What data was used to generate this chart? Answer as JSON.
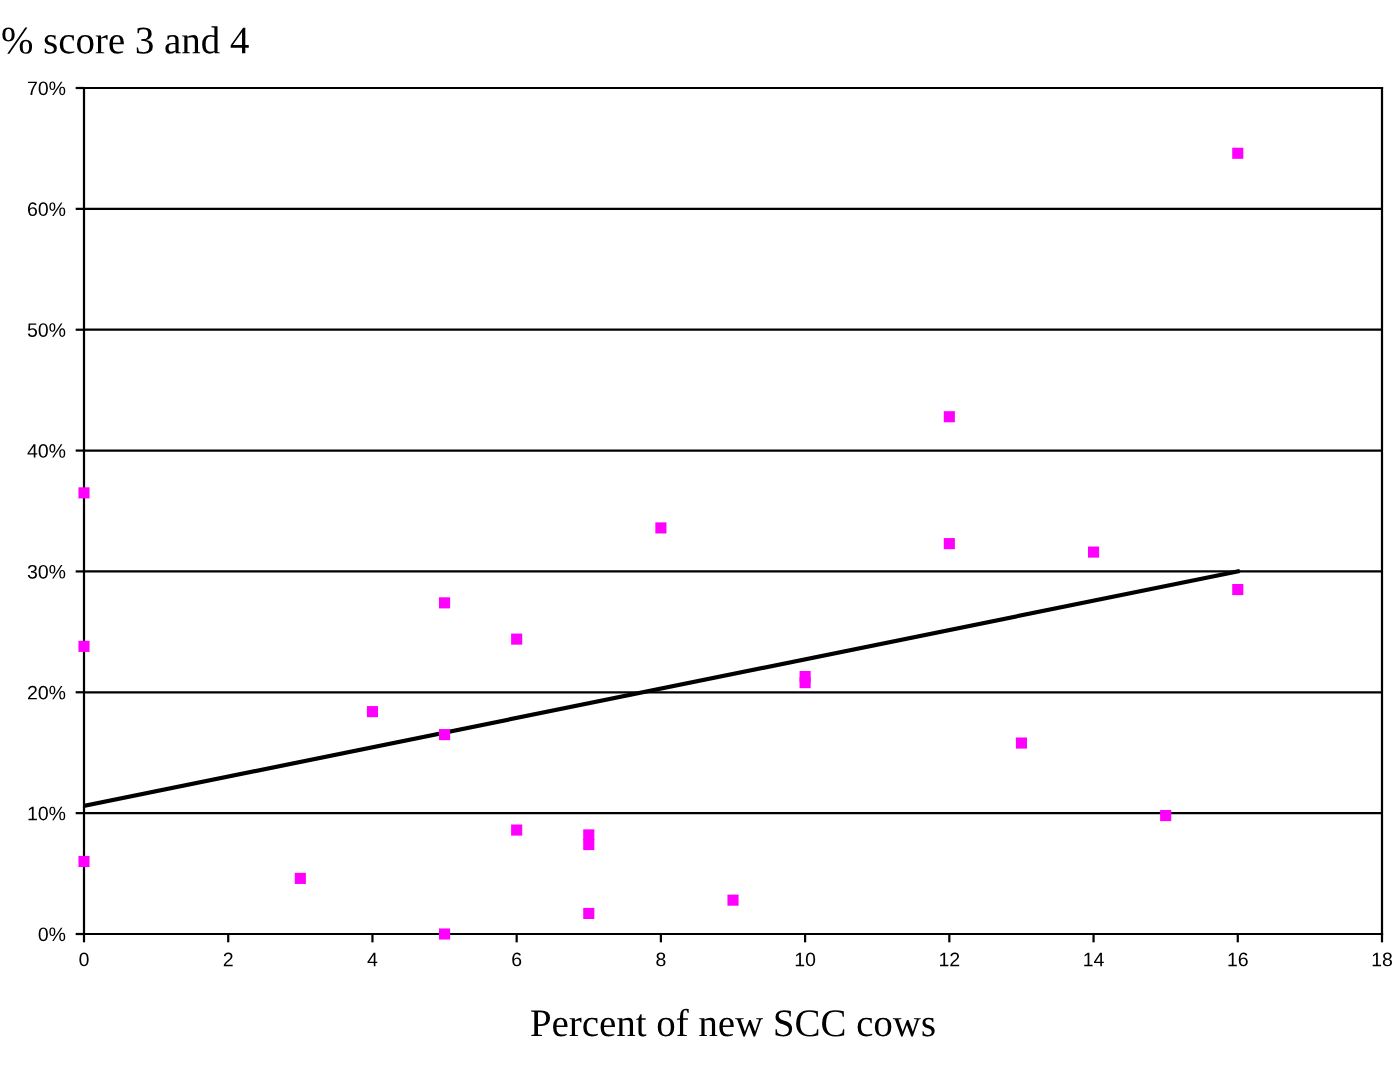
{
  "chart_data": {
    "type": "scatter",
    "ylabel": "% score 3 and 4",
    "xlabel": "Percent of new SCC cows",
    "series": [
      {
        "color": "#ff00ff",
        "marker": "square",
        "x": [
          0,
          0,
          0,
          3,
          4,
          5,
          5,
          5,
          6,
          6,
          7,
          7,
          7,
          8,
          9,
          10,
          10,
          12,
          12,
          13,
          14,
          15,
          16,
          16
        ],
        "values": [
          36.5,
          23.8,
          6,
          4.6,
          18.4,
          27.4,
          16.5,
          0,
          24.4,
          8.6,
          8.2,
          7.4,
          1.7,
          33.6,
          2.8,
          21.3,
          20.8,
          42.8,
          32.3,
          15.8,
          31.6,
          9.8,
          64.6,
          28.5
        ]
      },
      {
        "type": "line",
        "color": "#000000",
        "marker": "none",
        "x": [
          0,
          16
        ],
        "values": [
          10.6,
          30
        ]
      }
    ],
    "xlim": [
      0,
      18
    ],
    "xticks": [
      0,
      2,
      4,
      6,
      8,
      10,
      12,
      14,
      16,
      18
    ],
    "ylim": [
      0,
      70
    ],
    "yticks": [
      {
        "value": 0,
        "label": "0%"
      },
      {
        "value": 10,
        "label": "10%"
      },
      {
        "value": 20,
        "label": "20%"
      },
      {
        "value": 30,
        "label": "30%"
      },
      {
        "value": 40,
        "label": "40%"
      },
      {
        "value": 50,
        "label": "50%"
      },
      {
        "value": 60,
        "label": "60%"
      },
      {
        "value": 70,
        "label": "70%"
      }
    ],
    "grid": "y"
  }
}
